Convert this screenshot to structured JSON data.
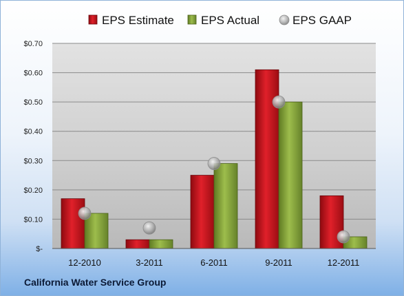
{
  "colors": {
    "estimate": "#d0121b",
    "actual": "#8aaa3c",
    "gaap": "#a9a9a9"
  },
  "footer": {
    "company": "California Water Service Group"
  },
  "chart_data": {
    "type": "bar",
    "categories": [
      "12-2010",
      "3-2011",
      "6-2011",
      "9-2011",
      "12-2011"
    ],
    "series": [
      {
        "name": "EPS Estimate",
        "kind": "bar",
        "values": [
          0.17,
          0.03,
          0.25,
          0.61,
          0.18
        ]
      },
      {
        "name": "EPS Actual",
        "kind": "bar",
        "values": [
          0.12,
          0.03,
          0.29,
          0.5,
          0.04
        ]
      },
      {
        "name": "EPS GAAP",
        "kind": "marker",
        "values": [
          0.12,
          0.07,
          0.29,
          0.5,
          0.04
        ]
      }
    ],
    "yticks": [
      "$-",
      "$0.10",
      "$0.20",
      "$0.30",
      "$0.40",
      "$0.50",
      "$0.60",
      "$0.70"
    ],
    "ylim": [
      0,
      0.7
    ],
    "grid": true,
    "legend": "top"
  }
}
